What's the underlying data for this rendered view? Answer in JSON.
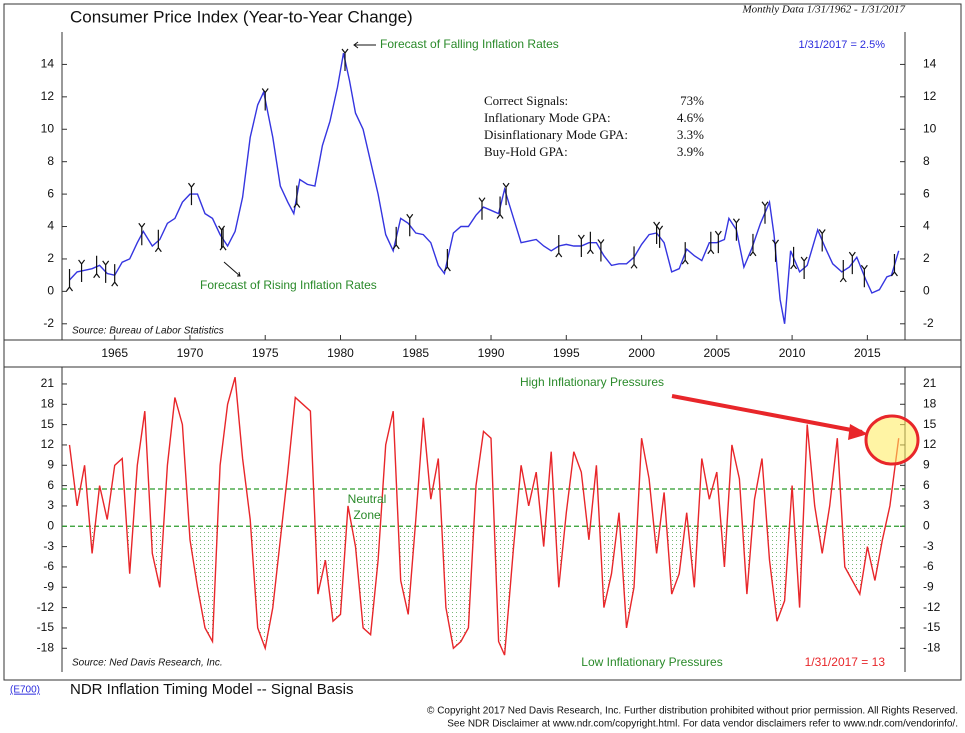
{
  "header": {
    "subtitle": "Monthly Data 1/31/1962 - 1/31/2017"
  },
  "footer": {
    "code": "(E700)",
    "title": "NDR Inflation Timing Model -- Signal Basis",
    "copyright": [
      "© Copyright 2017 Ned Davis Research, Inc.  Further distribution prohibited without prior permission.  All Rights Reserved.",
      "See NDR Disclaimer at www.ndr.com/copyright.html.  For data vendor disclaimers refer to www.ndr.com/vendorinfo/."
    ]
  },
  "chart_data": [
    {
      "type": "line",
      "title": "Consumer Price Index (Year-to-Year Change)",
      "color": "#3535e0",
      "annotations": {
        "last": "1/31/2017 = 2.5%",
        "source": "Source: Bureau of Labor Statistics",
        "falling": "Forecast of Falling Inflation Rates",
        "rising": "Forecast of Rising Inflation Rates"
      },
      "stats": [
        [
          "Correct Signals:",
          "73%"
        ],
        [
          "Inflationary Mode GPA:",
          "4.6%"
        ],
        [
          "Disinflationary Mode GPA:",
          "3.3%"
        ],
        [
          "Buy-Hold GPA:",
          "3.9%"
        ]
      ],
      "xlim": [
        1961.5,
        2017.5
      ],
      "xticks": [
        1965,
        1970,
        1975,
        1980,
        1985,
        1990,
        1995,
        2000,
        2005,
        2010,
        2015
      ],
      "ylim": [
        -3,
        16
      ],
      "yticks": [
        -2,
        0,
        2,
        4,
        6,
        8,
        10,
        12,
        14
      ],
      "x": [
        1962,
        1962.5,
        1963,
        1963.5,
        1964,
        1964.5,
        1965,
        1965.5,
        1966,
        1966.5,
        1966.9,
        1967.5,
        1968,
        1968.5,
        1969,
        1969.5,
        1970,
        1970.5,
        1971,
        1971.5,
        1972,
        1972.5,
        1973,
        1973.5,
        1974,
        1974.5,
        1974.9,
        1975.5,
        1976,
        1976.5,
        1976.9,
        1977.3,
        1977.8,
        1978.3,
        1978.8,
        1979.3,
        1979.8,
        1980.2,
        1980.6,
        1981,
        1981.5,
        1982,
        1982.5,
        1983,
        1983.5,
        1984,
        1984.5,
        1985,
        1985.5,
        1986,
        1986.5,
        1986.9,
        1987.5,
        1988,
        1988.5,
        1989,
        1989.5,
        1990,
        1990.5,
        1990.9,
        1991.5,
        1992,
        1992.5,
        1993,
        1993.5,
        1994,
        1994.5,
        1995,
        1995.5,
        1996,
        1996.5,
        1997,
        1997.5,
        1998,
        1998.5,
        1999,
        1999.5,
        2000,
        2000.5,
        2001,
        2001.5,
        2002,
        2002.5,
        2003,
        2003.5,
        2004,
        2004.5,
        2005,
        2005.5,
        2005.8,
        2006.3,
        2006.8,
        2007.3,
        2007.9,
        2008.5,
        2008.8,
        2009.2,
        2009.5,
        2009.9,
        2010.5,
        2011,
        2011.7,
        2012.2,
        2012.7,
        2013.3,
        2013.8,
        2014.3,
        2014.9,
        2015.3,
        2015.8,
        2016.3,
        2016.6,
        2017.08
      ],
      "values": [
        0.7,
        1.2,
        1.3,
        1.4,
        1.6,
        1.1,
        1.0,
        1.8,
        2.0,
        3.0,
        3.7,
        2.8,
        3.2,
        4.2,
        4.5,
        5.5,
        6.0,
        6.0,
        4.8,
        4.5,
        3.5,
        2.8,
        3.7,
        5.8,
        9.5,
        11.5,
        12.3,
        9.5,
        6.5,
        5.5,
        4.8,
        6.9,
        6.6,
        6.5,
        9.0,
        10.5,
        12.6,
        14.7,
        13.0,
        11.0,
        10.0,
        8.0,
        6.0,
        3.5,
        2.5,
        4.5,
        4.2,
        3.6,
        3.5,
        3.0,
        1.6,
        1.1,
        3.6,
        4.0,
        4.0,
        4.7,
        5.2,
        5.0,
        4.8,
        6.3,
        4.5,
        3.0,
        3.1,
        3.2,
        2.8,
        2.5,
        2.8,
        2.9,
        2.8,
        2.8,
        3.0,
        3.0,
        2.2,
        1.6,
        1.7,
        1.7,
        2.1,
        2.9,
        3.5,
        3.6,
        3.0,
        1.2,
        1.4,
        2.6,
        2.2,
        1.9,
        3.0,
        3.0,
        3.2,
        4.5,
        3.8,
        1.5,
        2.6,
        4.2,
        5.5,
        3.5,
        -0.5,
        -2.0,
        2.5,
        1.2,
        1.6,
        3.8,
        2.7,
        1.7,
        1.2,
        1.5,
        2.1,
        0.7,
        -0.1,
        0.1,
        0.9,
        1.0,
        2.5
      ],
      "down_arrows": [
        1962.8,
        1964.4,
        1966.8,
        1970.1,
        1972.1,
        1975.0,
        1980.3,
        1984.6,
        1989.4,
        1991.0,
        1996.0,
        1997.3,
        2001.0,
        2001.2,
        2005.1,
        2006.3,
        2008.2,
        2008.9,
        2010.8,
        2012.0,
        2014.0,
        2014.8
      ],
      "up_arrows": [
        1962.0,
        1963.8,
        1965.0,
        1967.9,
        1972.2,
        1977.1,
        1983.7,
        1987.1,
        1990.6,
        1994.5,
        1996.6,
        1999.5,
        2002.9,
        2004.6,
        2007.4,
        2010.1,
        2013.4,
        2016.8
      ]
    },
    {
      "type": "line",
      "color": "#e8262a",
      "annotations": {
        "last": "1/31/2017 = 13",
        "source": "Source: Ned Davis Research, Inc.",
        "high": "High Inflationary Pressures",
        "low": "Low Inflationary Pressures",
        "neutral": [
          "Neutral",
          "Zone"
        ]
      },
      "thresholds": [
        5.5,
        0
      ],
      "xlim": [
        1961.5,
        2017.5
      ],
      "ylim": [
        -21.5,
        23.5
      ],
      "yticks": [
        -18,
        -15,
        -12,
        -9,
        -6,
        -3,
        0,
        3,
        6,
        9,
        12,
        15,
        18,
        21
      ],
      "x": [
        1962,
        1962.5,
        1963,
        1963.5,
        1964,
        1964.5,
        1965,
        1965.5,
        1966,
        1966.5,
        1967,
        1967.5,
        1968,
        1968.5,
        1969,
        1969.5,
        1970,
        1970.5,
        1971,
        1971.5,
        1972,
        1972.5,
        1973,
        1973.5,
        1974,
        1974.5,
        1975,
        1975.5,
        1976,
        1976.5,
        1977,
        1977.5,
        1978,
        1978.5,
        1979,
        1979.5,
        1980,
        1980.5,
        1981,
        1981.5,
        1982,
        1982.5,
        1983,
        1983.5,
        1984,
        1984.5,
        1985,
        1985.5,
        1986,
        1986.5,
        1987,
        1987.5,
        1988,
        1988.5,
        1989,
        1989.5,
        1990,
        1990.5,
        1990.9,
        1991.5,
        1992,
        1992.5,
        1993,
        1993.5,
        1994,
        1994.5,
        1995,
        1995.5,
        1996,
        1996.5,
        1997,
        1997.5,
        1998,
        1998.5,
        1999,
        1999.5,
        2000,
        2000.5,
        2001,
        2001.5,
        2002,
        2002.5,
        2003,
        2003.5,
        2004,
        2004.5,
        2005,
        2005.5,
        2006,
        2006.5,
        2007,
        2007.5,
        2008,
        2008.5,
        2009,
        2009.5,
        2010,
        2010.5,
        2011,
        2011.5,
        2012,
        2012.5,
        2013,
        2013.5,
        2014,
        2014.5,
        2015,
        2015.5,
        2016,
        2016.5,
        2017.08
      ],
      "values": [
        12,
        3,
        9,
        -4,
        6,
        1,
        9,
        10,
        -7,
        9,
        17,
        -4,
        -9,
        9,
        19,
        15,
        -2,
        -9,
        -15,
        -17,
        9,
        18,
        22,
        10,
        1,
        -15,
        -18,
        -12,
        -2,
        8,
        19,
        18,
        17,
        -10,
        -5,
        -14,
        -13,
        3,
        -3,
        -15,
        -16,
        -5,
        12,
        17,
        -8,
        -13,
        1,
        16,
        4,
        10,
        -12,
        -18,
        -17,
        -15,
        6,
        14,
        13,
        -17,
        -19,
        -3,
        9,
        3,
        8,
        -3,
        11,
        -9,
        2,
        11,
        8,
        -2,
        9,
        -12,
        -7,
        2,
        -15,
        -9,
        13,
        7,
        -4,
        5,
        -10,
        -7,
        2,
        -9,
        10,
        4,
        8,
        -6,
        12,
        7,
        -10,
        4,
        10,
        -5,
        -14,
        -11,
        6,
        -12,
        15,
        3,
        -4,
        3,
        13,
        -6,
        -8,
        -10,
        -3,
        -8,
        -2,
        3,
        13
      ]
    }
  ]
}
